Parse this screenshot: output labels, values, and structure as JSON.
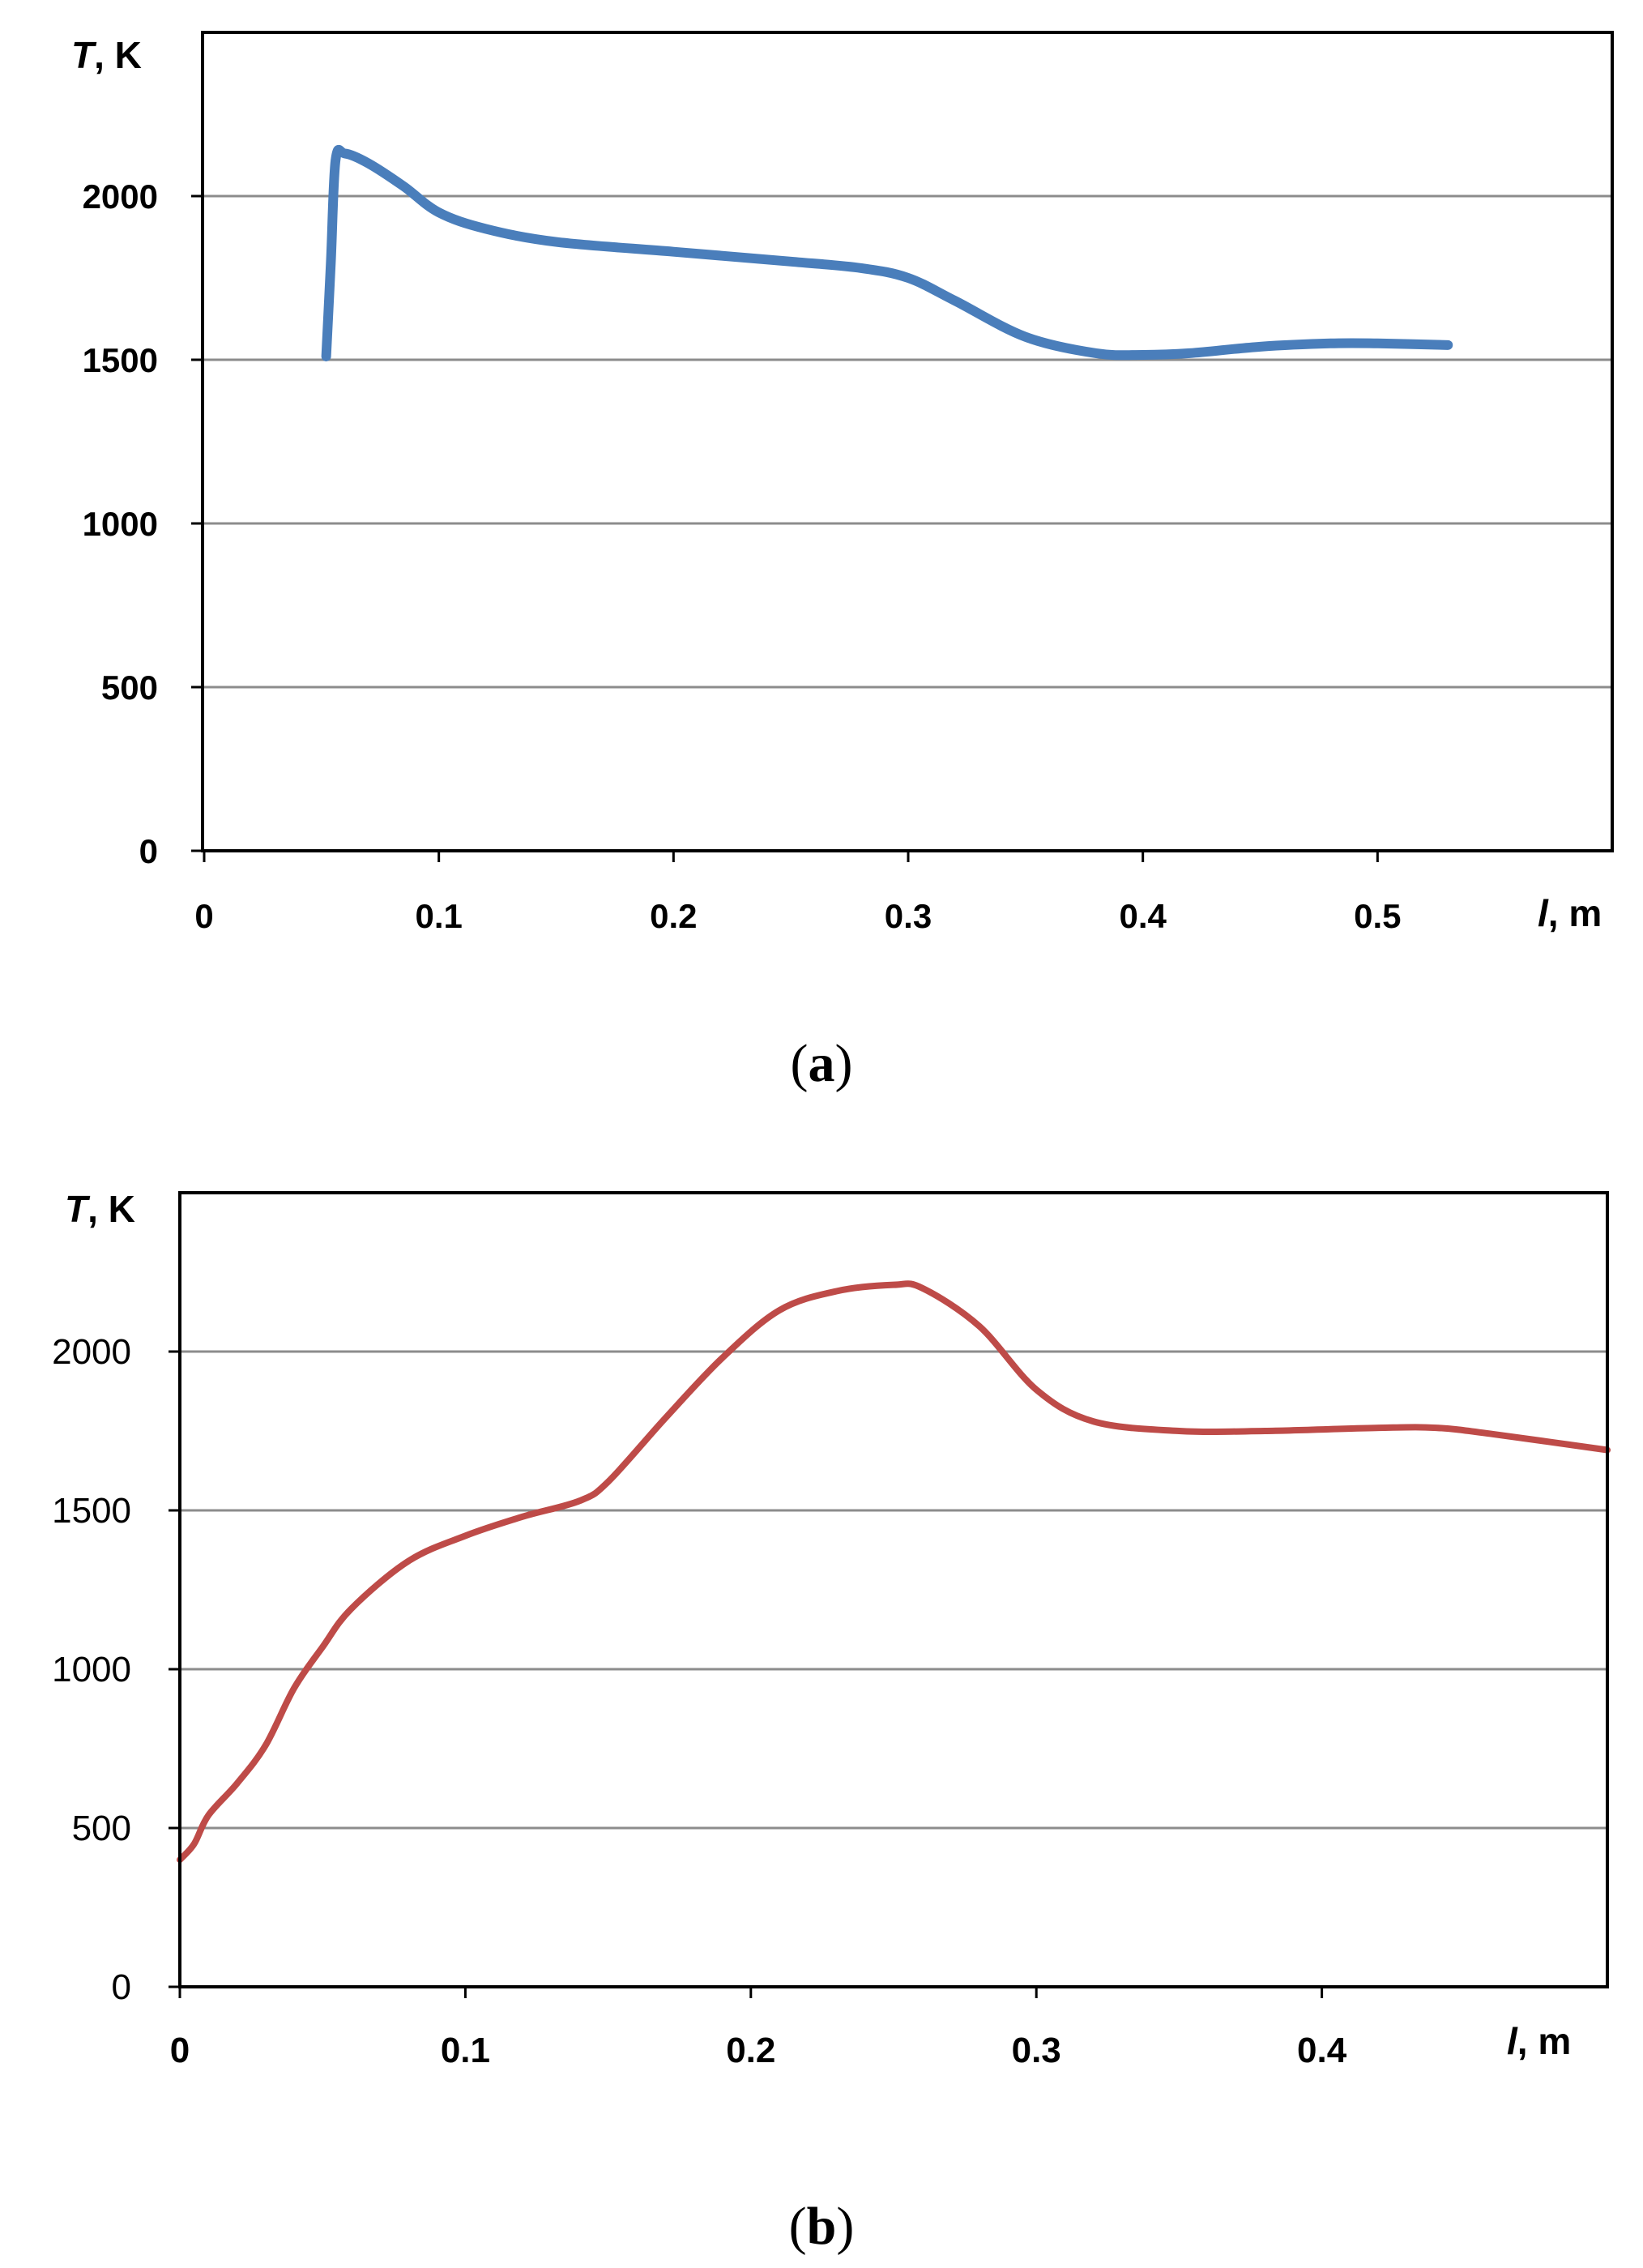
{
  "chart_data": [
    {
      "type": "line",
      "panel_label": "a",
      "ylabel": "T, K",
      "xlabel": "l, m",
      "xlim": [
        0,
        0.6
      ],
      "ylim": [
        0,
        2500
      ],
      "x_ticks": [
        "0",
        "0.1",
        "0.2",
        "0.3",
        "0.4",
        "0.5"
      ],
      "y_ticks": [
        "0",
        "500",
        "1000",
        "1500",
        "2000"
      ],
      "grid": true,
      "series": [
        {
          "color": "#4a7ebb",
          "x": [
            0.052,
            0.054,
            0.056,
            0.06,
            0.07,
            0.085,
            0.1,
            0.12,
            0.15,
            0.2,
            0.25,
            0.28,
            0.3,
            0.32,
            0.35,
            0.38,
            0.4,
            0.42,
            0.45,
            0.48,
            0.5,
            0.53
          ],
          "y": [
            1510,
            1800,
            2110,
            2130,
            2100,
            2030,
            1950,
            1900,
            1860,
            1830,
            1800,
            1780,
            1750,
            1680,
            1570,
            1520,
            1515,
            1520,
            1540,
            1550,
            1550,
            1545
          ]
        }
      ]
    },
    {
      "type": "line",
      "panel_label": "b",
      "ylabel": "T, K",
      "xlabel": "l, m",
      "xlim": [
        0,
        0.5
      ],
      "ylim": [
        0,
        2500
      ],
      "x_ticks": [
        "0",
        "0.1",
        "0.2",
        "0.3",
        "0.4"
      ],
      "y_ticks": [
        "0",
        "500",
        "1000",
        "1500",
        "2000"
      ],
      "grid": true,
      "series": [
        {
          "color": "#be4b48",
          "x": [
            0,
            0.005,
            0.01,
            0.02,
            0.03,
            0.04,
            0.05,
            0.06,
            0.08,
            0.1,
            0.12,
            0.14,
            0.15,
            0.17,
            0.19,
            0.21,
            0.23,
            0.25,
            0.26,
            0.28,
            0.3,
            0.32,
            0.35,
            0.38,
            0.42,
            0.44,
            0.46,
            0.5
          ],
          "y": [
            400,
            450,
            540,
            640,
            760,
            940,
            1070,
            1190,
            1340,
            1420,
            1480,
            1530,
            1590,
            1790,
            1980,
            2130,
            2190,
            2210,
            2200,
            2080,
            1880,
            1780,
            1750,
            1750,
            1760,
            1760,
            1740,
            1690
          ]
        }
      ]
    }
  ]
}
